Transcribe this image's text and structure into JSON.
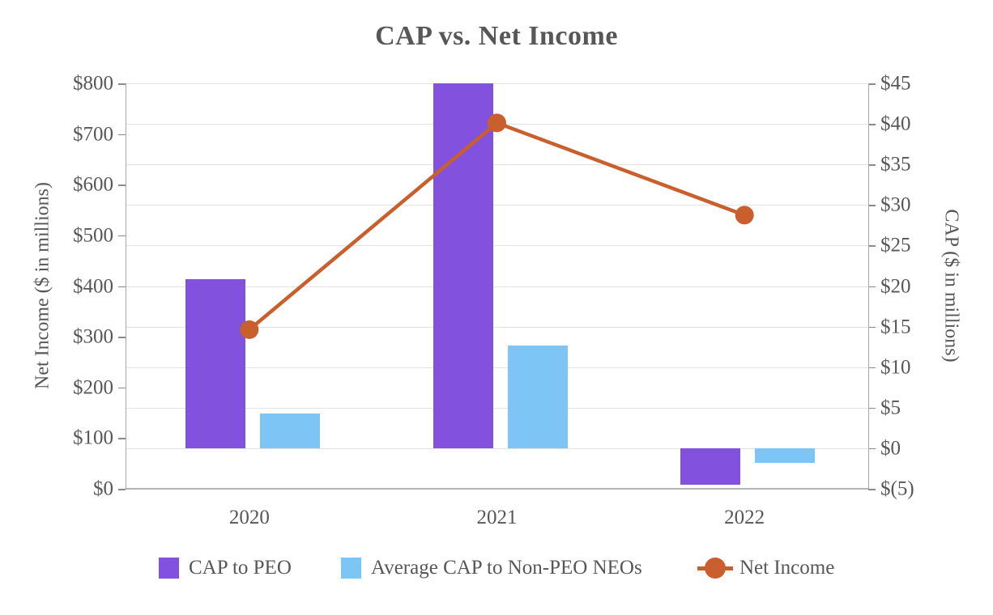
{
  "chart_data": {
    "type": "combo-bar-line",
    "title": "CAP vs. Net Income",
    "categories": [
      "2020",
      "2021",
      "2022"
    ],
    "bar_series": [
      {
        "name": "CAP to PEO",
        "axis": "right",
        "color": "#8252DE",
        "values": [
          20.8,
          45,
          -4.5
        ]
      },
      {
        "name": "Average CAP to Non-PEO NEOs",
        "axis": "right",
        "color": "#7CC5F5",
        "values": [
          4.3,
          12.7,
          -1.8
        ]
      }
    ],
    "line_series": [
      {
        "name": "Net Income",
        "axis": "left",
        "color": "#C95F2C",
        "values": [
          314,
          722,
          540
        ]
      }
    ],
    "left_axis": {
      "title": "Net Income ($ in millions)",
      "min": 0,
      "max": 800,
      "tick_step": 100,
      "tick_labels": [
        "$800",
        "$700",
        "$600",
        "$500",
        "$400",
        "$300",
        "$200",
        "$100",
        "$0"
      ]
    },
    "right_axis": {
      "title": "CAP ($ in millions)",
      "min": -5,
      "max": 45,
      "tick_step": 5,
      "tick_labels": [
        "$45",
        "$40",
        "$35",
        "$30",
        "$25",
        "$20",
        "$15",
        "$10",
        "$5",
        "$0",
        "$(5)"
      ]
    },
    "grid": {
      "horizontal": true,
      "follows": "right_axis",
      "vertical": false
    },
    "legend_position": "bottom",
    "style": {
      "text_color": "#575757",
      "gridline_color": "#E3E3E3",
      "axis_line_color": "#A9A9A9",
      "tick_color": "#8A8A8A",
      "category_axis_color": "#B3B3B3",
      "background": "#FFFFFF"
    }
  }
}
